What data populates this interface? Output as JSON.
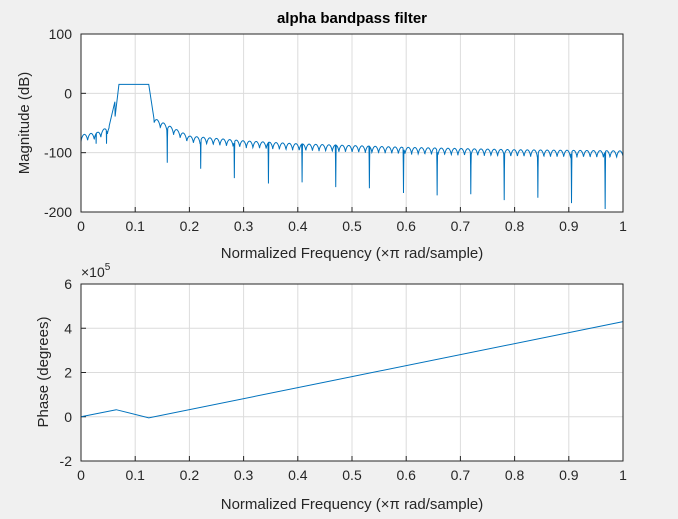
{
  "background": "#f0f0f0",
  "series_color": "#0072bd",
  "chart_data": [
    {
      "type": "line",
      "title": "alpha bandpass filter",
      "xlabel": "Normalized Frequency  (×π rad/sample)",
      "ylabel": "Magnitude (dB)",
      "xlim": [
        0,
        1
      ],
      "ylim": [
        -200,
        100
      ],
      "xticks": [
        0,
        0.1,
        0.2,
        0.3,
        0.4,
        0.5,
        0.6,
        0.7,
        0.8,
        0.9,
        1
      ],
      "xtick_labels": [
        "0",
        "0.1",
        "0.2",
        "0.3",
        "0.4",
        "0.5",
        "0.6",
        "0.7",
        "0.8",
        "0.9",
        "1"
      ],
      "yticks": [
        -200,
        -100,
        0,
        100
      ],
      "ytick_labels": [
        "-200",
        "-100",
        "0",
        "100"
      ],
      "grid": true,
      "passband": {
        "x_start": 0.07,
        "x_end": 0.125,
        "level_db": 15
      },
      "stopband_envelope": [
        [
          0.0,
          -70
        ],
        [
          0.03,
          -66
        ],
        [
          0.06,
          -52
        ],
        [
          0.135,
          -42
        ],
        [
          0.2,
          -72
        ],
        [
          0.3,
          -80
        ],
        [
          0.4,
          -85
        ],
        [
          0.5,
          -88
        ],
        [
          0.6,
          -91
        ],
        [
          0.7,
          -93
        ],
        [
          0.8,
          -95
        ],
        [
          0.9,
          -96
        ],
        [
          1.0,
          -97
        ]
      ],
      "deep_nulls": [
        [
          0.028,
          -85
        ],
        [
          0.047,
          -85
        ],
        [
          0.159,
          -117
        ],
        [
          0.221,
          -127
        ],
        [
          0.283,
          -143
        ],
        [
          0.346,
          -152
        ],
        [
          0.408,
          -150
        ],
        [
          0.47,
          -158
        ],
        [
          0.532,
          -160
        ],
        [
          0.595,
          -168
        ],
        [
          0.657,
          -172
        ],
        [
          0.719,
          -170
        ],
        [
          0.781,
          -180
        ],
        [
          0.843,
          -176
        ],
        [
          0.905,
          -185
        ],
        [
          0.967,
          -195
        ]
      ],
      "ripple_period": 0.0122,
      "ripple_depth_db": 12
    },
    {
      "type": "line",
      "xlabel": "Normalized Frequency  (×π rad/sample)",
      "ylabel": "Phase (degrees)",
      "exponent_label": "×10",
      "exponent_power": "5",
      "xlim": [
        0,
        1
      ],
      "ylim": [
        -2,
        6
      ],
      "xticks": [
        0,
        0.1,
        0.2,
        0.3,
        0.4,
        0.5,
        0.6,
        0.7,
        0.8,
        0.9,
        1
      ],
      "xtick_labels": [
        "0",
        "0.1",
        "0.2",
        "0.3",
        "0.4",
        "0.5",
        "0.6",
        "0.7",
        "0.8",
        "0.9",
        "1"
      ],
      "yticks": [
        -2,
        0,
        2,
        4,
        6
      ],
      "ytick_labels": [
        "-2",
        "0",
        "2",
        "4",
        "6"
      ],
      "grid": true,
      "points": [
        [
          0,
          0
        ],
        [
          0.065,
          0.32
        ],
        [
          0.125,
          -0.05
        ],
        [
          1,
          4.3
        ]
      ]
    }
  ]
}
